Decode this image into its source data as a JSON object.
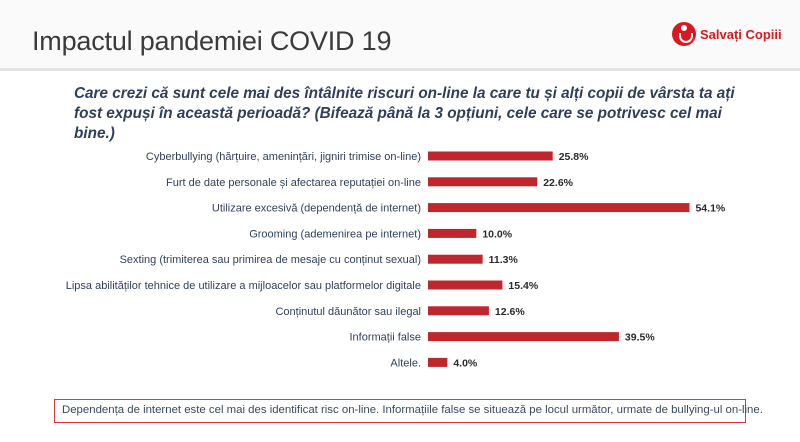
{
  "header": {
    "title": "Impactul pandemiei COVID 19",
    "logo_text": "Salvați Copiii"
  },
  "question": "Care crezi că sunt cele mai des întâlnite riscuri on-line la care tu și alți copii de vârsta ta ați fost expuși în această perioadă? (Bifează până la 3 opțiuni, cele care se potrivesc cel mai bine.)",
  "footer_note": "Dependența de internet este cel mai des identificat risc on-line. Informațiile false se situează pe locul următor, urmate de bullying-ul on-line.",
  "colors": {
    "bar": "#c0272d",
    "text": "#2f3f5a"
  },
  "chart_data": {
    "type": "bar",
    "orientation": "horizontal",
    "categories": [
      "Cyberbullying (hărțuire, amenințări, jigniri trimise on-line)",
      "Furt de date personale și afectarea reputației on-line",
      "Utilizare excesivă (dependență de internet)",
      "Grooming (ademenirea pe internet)",
      "Sexting (trimiterea sau primirea de mesaje cu conținut sexual)",
      "Lipsa abilităților tehnice de utilizare a mijloacelor sau platformelor digitale",
      "Conținutul dăunător sau ilegal",
      "Informații false",
      "Altele."
    ],
    "values": [
      25.8,
      22.6,
      54.1,
      10.0,
      11.3,
      15.4,
      12.6,
      39.5,
      4.0
    ],
    "value_labels": [
      "25.8%",
      "22.6%",
      "54.1%",
      "10.0%",
      "11.3%",
      "15.4%",
      "12.6%",
      "39.5%",
      "4.0%"
    ],
    "unit": "%",
    "xlim": [
      0,
      60
    ],
    "grid": false,
    "axes_visible": false
  }
}
